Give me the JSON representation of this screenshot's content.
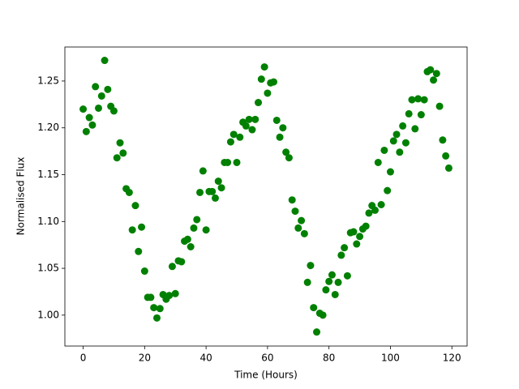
{
  "chart_data": {
    "type": "scatter",
    "x_label": "Time (Hours)",
    "y_label": "Normalised Flux",
    "color": "#008000",
    "x": [
      0,
      1,
      2,
      3,
      4,
      5,
      6,
      7,
      8,
      9,
      10,
      11,
      12,
      13,
      14,
      15,
      16,
      17,
      18,
      19,
      20,
      21,
      22,
      23,
      24,
      25,
      26,
      27,
      28,
      29,
      30,
      31,
      32,
      33,
      34,
      35,
      36,
      37,
      38,
      39,
      40,
      41,
      42,
      43,
      44,
      45,
      46,
      47,
      48,
      49,
      50,
      51,
      52,
      53,
      54,
      55,
      56,
      57,
      58,
      59,
      60,
      61,
      62,
      63,
      64,
      65,
      66,
      67,
      68,
      69,
      70,
      71,
      72,
      73,
      74,
      75,
      76,
      77,
      78,
      79,
      80,
      81,
      82,
      83,
      84,
      85,
      86,
      87,
      88,
      89,
      90,
      91,
      92,
      93,
      94,
      95,
      96,
      97,
      98,
      99,
      100,
      101,
      102,
      103,
      104,
      105,
      106,
      107,
      108,
      109,
      110,
      111,
      112,
      113,
      114,
      115,
      116,
      117,
      118,
      119
    ],
    "values": [
      1.22,
      1.196,
      1.211,
      1.203,
      1.244,
      1.221,
      1.234,
      1.272,
      1.241,
      1.223,
      1.218,
      1.168,
      1.184,
      1.173,
      1.135,
      1.131,
      1.091,
      1.117,
      1.068,
      1.094,
      1.047,
      1.019,
      1.019,
      1.008,
      0.997,
      1.007,
      1.022,
      1.017,
      1.021,
      1.052,
      1.023,
      1.058,
      1.057,
      1.079,
      1.081,
      1.073,
      1.093,
      1.102,
      1.131,
      1.154,
      1.091,
      1.132,
      1.132,
      1.125,
      1.143,
      1.136,
      1.163,
      1.163,
      1.185,
      1.193,
      1.163,
      1.19,
      1.206,
      1.202,
      1.209,
      1.198,
      1.209,
      1.227,
      1.252,
      1.265,
      1.237,
      1.248,
      1.249,
      1.208,
      1.19,
      1.2,
      1.174,
      1.168,
      1.123,
      1.111,
      1.093,
      1.101,
      1.087,
      1.035,
      1.053,
      1.008,
      0.982,
      1.002,
      1.0,
      1.027,
      1.036,
      1.043,
      1.022,
      1.035,
      1.064,
      1.072,
      1.042,
      1.088,
      1.089,
      1.076,
      1.084,
      1.092,
      1.095,
      1.109,
      1.117,
      1.112,
      1.163,
      1.118,
      1.176,
      1.133,
      1.153,
      1.186,
      1.193,
      1.174,
      1.202,
      1.184,
      1.215,
      1.23,
      1.199,
      1.231,
      1.214,
      1.23,
      1.26,
      1.262,
      1.251,
      1.258,
      1.223,
      1.187,
      1.17,
      1.157
    ],
    "xlim": [
      -5.95,
      124.95
    ],
    "xticks": [
      0,
      20,
      40,
      60,
      80,
      100,
      120
    ],
    "ylim": [
      0.967,
      1.2863
    ],
    "yticks": [
      {
        "value": 1,
        "label": "1.00"
      },
      1.05,
      {
        "value": 1.1,
        "label": "1.10"
      },
      1.15,
      {
        "value": 1.2,
        "label": "1.20"
      },
      1.25
    ]
  }
}
